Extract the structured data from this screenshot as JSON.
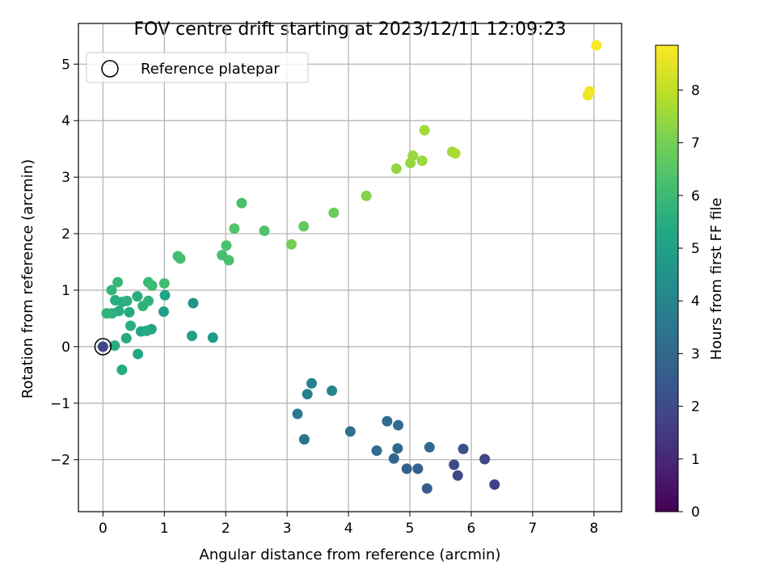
{
  "chart_data": {
    "type": "scatter",
    "title": "FOV centre drift starting at 2023/12/11 12:09:23",
    "xlabel": "Angular distance from reference (arcmin)",
    "ylabel": "Rotation from reference (arcmin)",
    "xlim": [
      -0.4,
      8.45
    ],
    "ylim": [
      -2.92,
      5.72
    ],
    "xticks": [
      0,
      1,
      2,
      3,
      4,
      5,
      6,
      7,
      8
    ],
    "yticks": [
      -2,
      -1,
      0,
      1,
      2,
      3,
      4,
      5
    ],
    "grid": true,
    "legend": {
      "placement": "top-left",
      "entries": [
        "Reference platepar"
      ]
    },
    "colorbar": {
      "label": "Hours from first FF file",
      "range": [
        0,
        8.85
      ],
      "ticks": [
        0,
        1,
        2,
        3,
        4,
        5,
        6,
        7,
        8
      ],
      "colormap": "viridis"
    },
    "reference_point": {
      "x": 0,
      "y": 0
    },
    "points": [
      {
        "x": 0.0,
        "y": 0.0,
        "c": 1.8
      },
      {
        "x": 6.38,
        "y": -2.44,
        "c": 1.7
      },
      {
        "x": 5.78,
        "y": -2.28,
        "c": 1.9
      },
      {
        "x": 5.72,
        "y": -2.09,
        "c": 2.0
      },
      {
        "x": 6.22,
        "y": -1.99,
        "c": 1.8
      },
      {
        "x": 5.87,
        "y": -1.81,
        "c": 2.2
      },
      {
        "x": 5.28,
        "y": -2.51,
        "c": 2.6
      },
      {
        "x": 5.13,
        "y": -2.16,
        "c": 2.7
      },
      {
        "x": 4.95,
        "y": -2.16,
        "c": 2.8
      },
      {
        "x": 4.74,
        "y": -1.98,
        "c": 3.0
      },
      {
        "x": 4.8,
        "y": -1.8,
        "c": 3.0
      },
      {
        "x": 5.32,
        "y": -1.78,
        "c": 3.0
      },
      {
        "x": 4.46,
        "y": -1.84,
        "c": 3.1
      },
      {
        "x": 4.63,
        "y": -1.32,
        "c": 3.1
      },
      {
        "x": 4.81,
        "y": -1.39,
        "c": 3.2
      },
      {
        "x": 4.03,
        "y": -1.5,
        "c": 3.3
      },
      {
        "x": 3.28,
        "y": -1.64,
        "c": 3.4
      },
      {
        "x": 3.17,
        "y": -1.19,
        "c": 3.6
      },
      {
        "x": 3.33,
        "y": -0.84,
        "c": 3.8
      },
      {
        "x": 3.4,
        "y": -0.65,
        "c": 3.9
      },
      {
        "x": 3.73,
        "y": -0.78,
        "c": 4.0
      },
      {
        "x": 1.47,
        "y": 0.77,
        "c": 4.6
      },
      {
        "x": 1.79,
        "y": 0.16,
        "c": 4.8
      },
      {
        "x": 1.45,
        "y": 0.19,
        "c": 5.0
      },
      {
        "x": 0.99,
        "y": 0.62,
        "c": 4.9
      },
      {
        "x": 1.01,
        "y": 0.91,
        "c": 5.1
      },
      {
        "x": 0.79,
        "y": 0.31,
        "c": 5.2
      },
      {
        "x": 0.62,
        "y": 0.27,
        "c": 5.3
      },
      {
        "x": 0.71,
        "y": 0.28,
        "c": 5.4
      },
      {
        "x": 0.57,
        "y": -0.13,
        "c": 5.3
      },
      {
        "x": 0.31,
        "y": -0.41,
        "c": 5.4
      },
      {
        "x": 0.38,
        "y": 0.15,
        "c": 5.4
      },
      {
        "x": 0.19,
        "y": 0.02,
        "c": 5.5
      },
      {
        "x": 0.45,
        "y": 0.37,
        "c": 5.5
      },
      {
        "x": 0.43,
        "y": 0.61,
        "c": 5.4
      },
      {
        "x": 0.26,
        "y": 0.63,
        "c": 5.5
      },
      {
        "x": 0.15,
        "y": 0.59,
        "c": 5.6
      },
      {
        "x": 0.06,
        "y": 0.59,
        "c": 5.7
      },
      {
        "x": 0.2,
        "y": 0.82,
        "c": 5.5
      },
      {
        "x": 0.31,
        "y": 0.79,
        "c": 5.5
      },
      {
        "x": 0.39,
        "y": 0.81,
        "c": 5.6
      },
      {
        "x": 0.56,
        "y": 0.89,
        "c": 5.5
      },
      {
        "x": 0.65,
        "y": 0.72,
        "c": 5.7
      },
      {
        "x": 0.74,
        "y": 0.81,
        "c": 5.7
      },
      {
        "x": 0.14,
        "y": 1.0,
        "c": 5.8
      },
      {
        "x": 0.24,
        "y": 1.14,
        "c": 5.9
      },
      {
        "x": 0.74,
        "y": 1.14,
        "c": 5.9
      },
      {
        "x": 0.8,
        "y": 1.08,
        "c": 6.0
      },
      {
        "x": 1.0,
        "y": 1.12,
        "c": 6.1
      },
      {
        "x": 1.22,
        "y": 1.6,
        "c": 6.1
      },
      {
        "x": 1.26,
        "y": 1.56,
        "c": 6.2
      },
      {
        "x": 1.94,
        "y": 1.62,
        "c": 6.2
      },
      {
        "x": 2.01,
        "y": 1.79,
        "c": 6.3
      },
      {
        "x": 2.05,
        "y": 1.53,
        "c": 6.3
      },
      {
        "x": 2.14,
        "y": 2.09,
        "c": 6.4
      },
      {
        "x": 2.26,
        "y": 2.54,
        "c": 6.3
      },
      {
        "x": 2.63,
        "y": 2.05,
        "c": 6.4
      },
      {
        "x": 3.07,
        "y": 1.81,
        "c": 7.0
      },
      {
        "x": 3.27,
        "y": 2.13,
        "c": 6.7
      },
      {
        "x": 3.76,
        "y": 2.37,
        "c": 6.8
      },
      {
        "x": 4.29,
        "y": 2.67,
        "c": 7.2
      },
      {
        "x": 4.78,
        "y": 3.15,
        "c": 7.4
      },
      {
        "x": 5.01,
        "y": 3.25,
        "c": 7.4
      },
      {
        "x": 5.05,
        "y": 3.38,
        "c": 7.5
      },
      {
        "x": 5.2,
        "y": 3.29,
        "c": 7.5
      },
      {
        "x": 5.24,
        "y": 3.83,
        "c": 7.6
      },
      {
        "x": 5.69,
        "y": 3.45,
        "c": 7.6
      },
      {
        "x": 5.74,
        "y": 3.42,
        "c": 7.7
      },
      {
        "x": 7.9,
        "y": 4.45,
        "c": 8.6
      },
      {
        "x": 7.93,
        "y": 4.52,
        "c": 8.7
      },
      {
        "x": 8.04,
        "y": 5.33,
        "c": 8.8
      }
    ]
  }
}
